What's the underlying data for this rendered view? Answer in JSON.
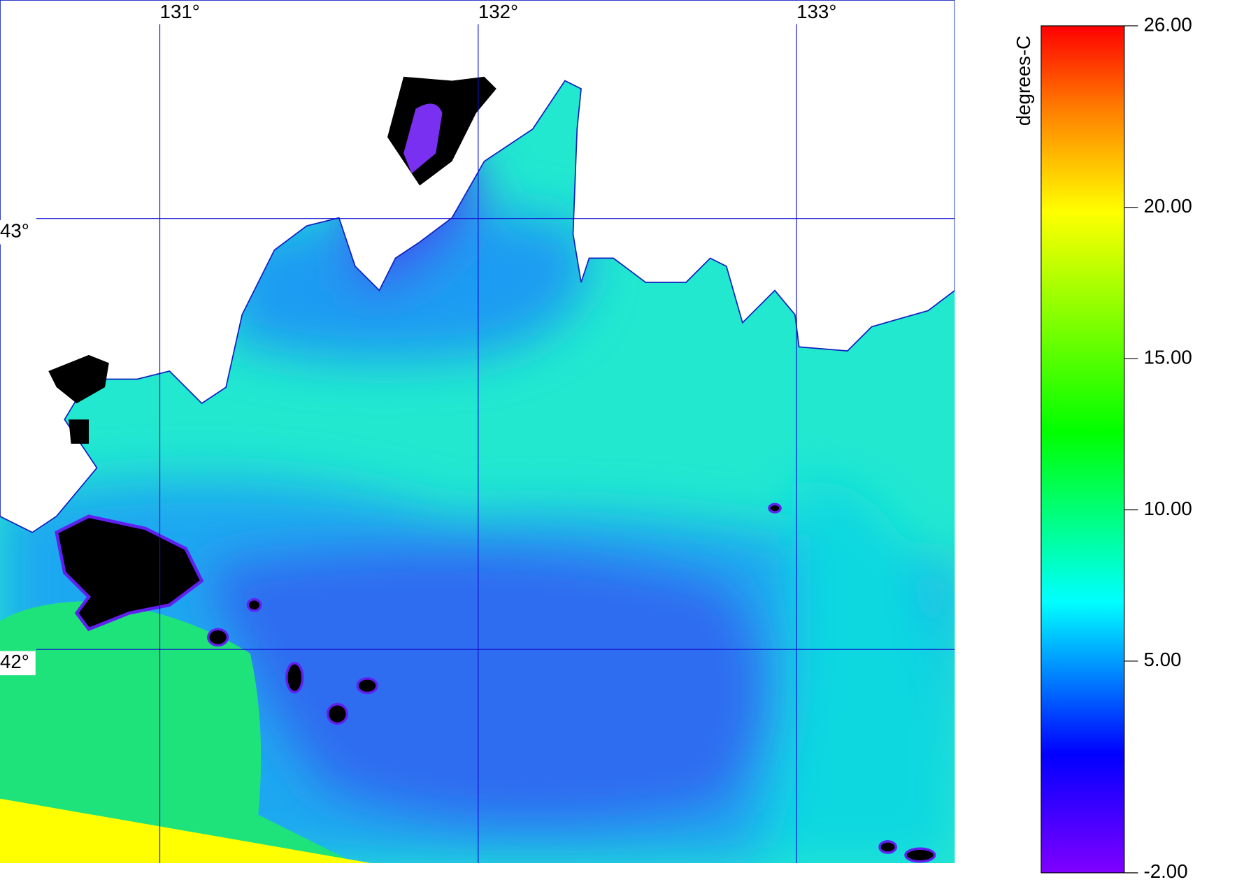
{
  "map": {
    "lonlim": [
      130.498,
      133.497
    ],
    "latlim": [
      41.504,
      43.507
    ],
    "longitudes": [
      {
        "value": 131,
        "label": "131°"
      },
      {
        "value": 132,
        "label": "132°"
      },
      {
        "value": 133,
        "label": "133°"
      }
    ],
    "latitudes": [
      {
        "value": 43,
        "label": "43°"
      },
      {
        "value": 42,
        "label": "42°"
      }
    ],
    "colorbar": {
      "label": "degrees-C",
      "lim": [
        -2,
        26
      ],
      "ticks": [
        {
          "value": 26,
          "label": "26.00"
        },
        {
          "value": 20,
          "label": "20.00"
        },
        {
          "value": 15,
          "label": "15.00"
        },
        {
          "value": 10,
          "label": "10.00"
        },
        {
          "value": 5,
          "label": "5.00"
        },
        {
          "value": -2,
          "label": "-2.00"
        }
      ]
    }
  }
}
